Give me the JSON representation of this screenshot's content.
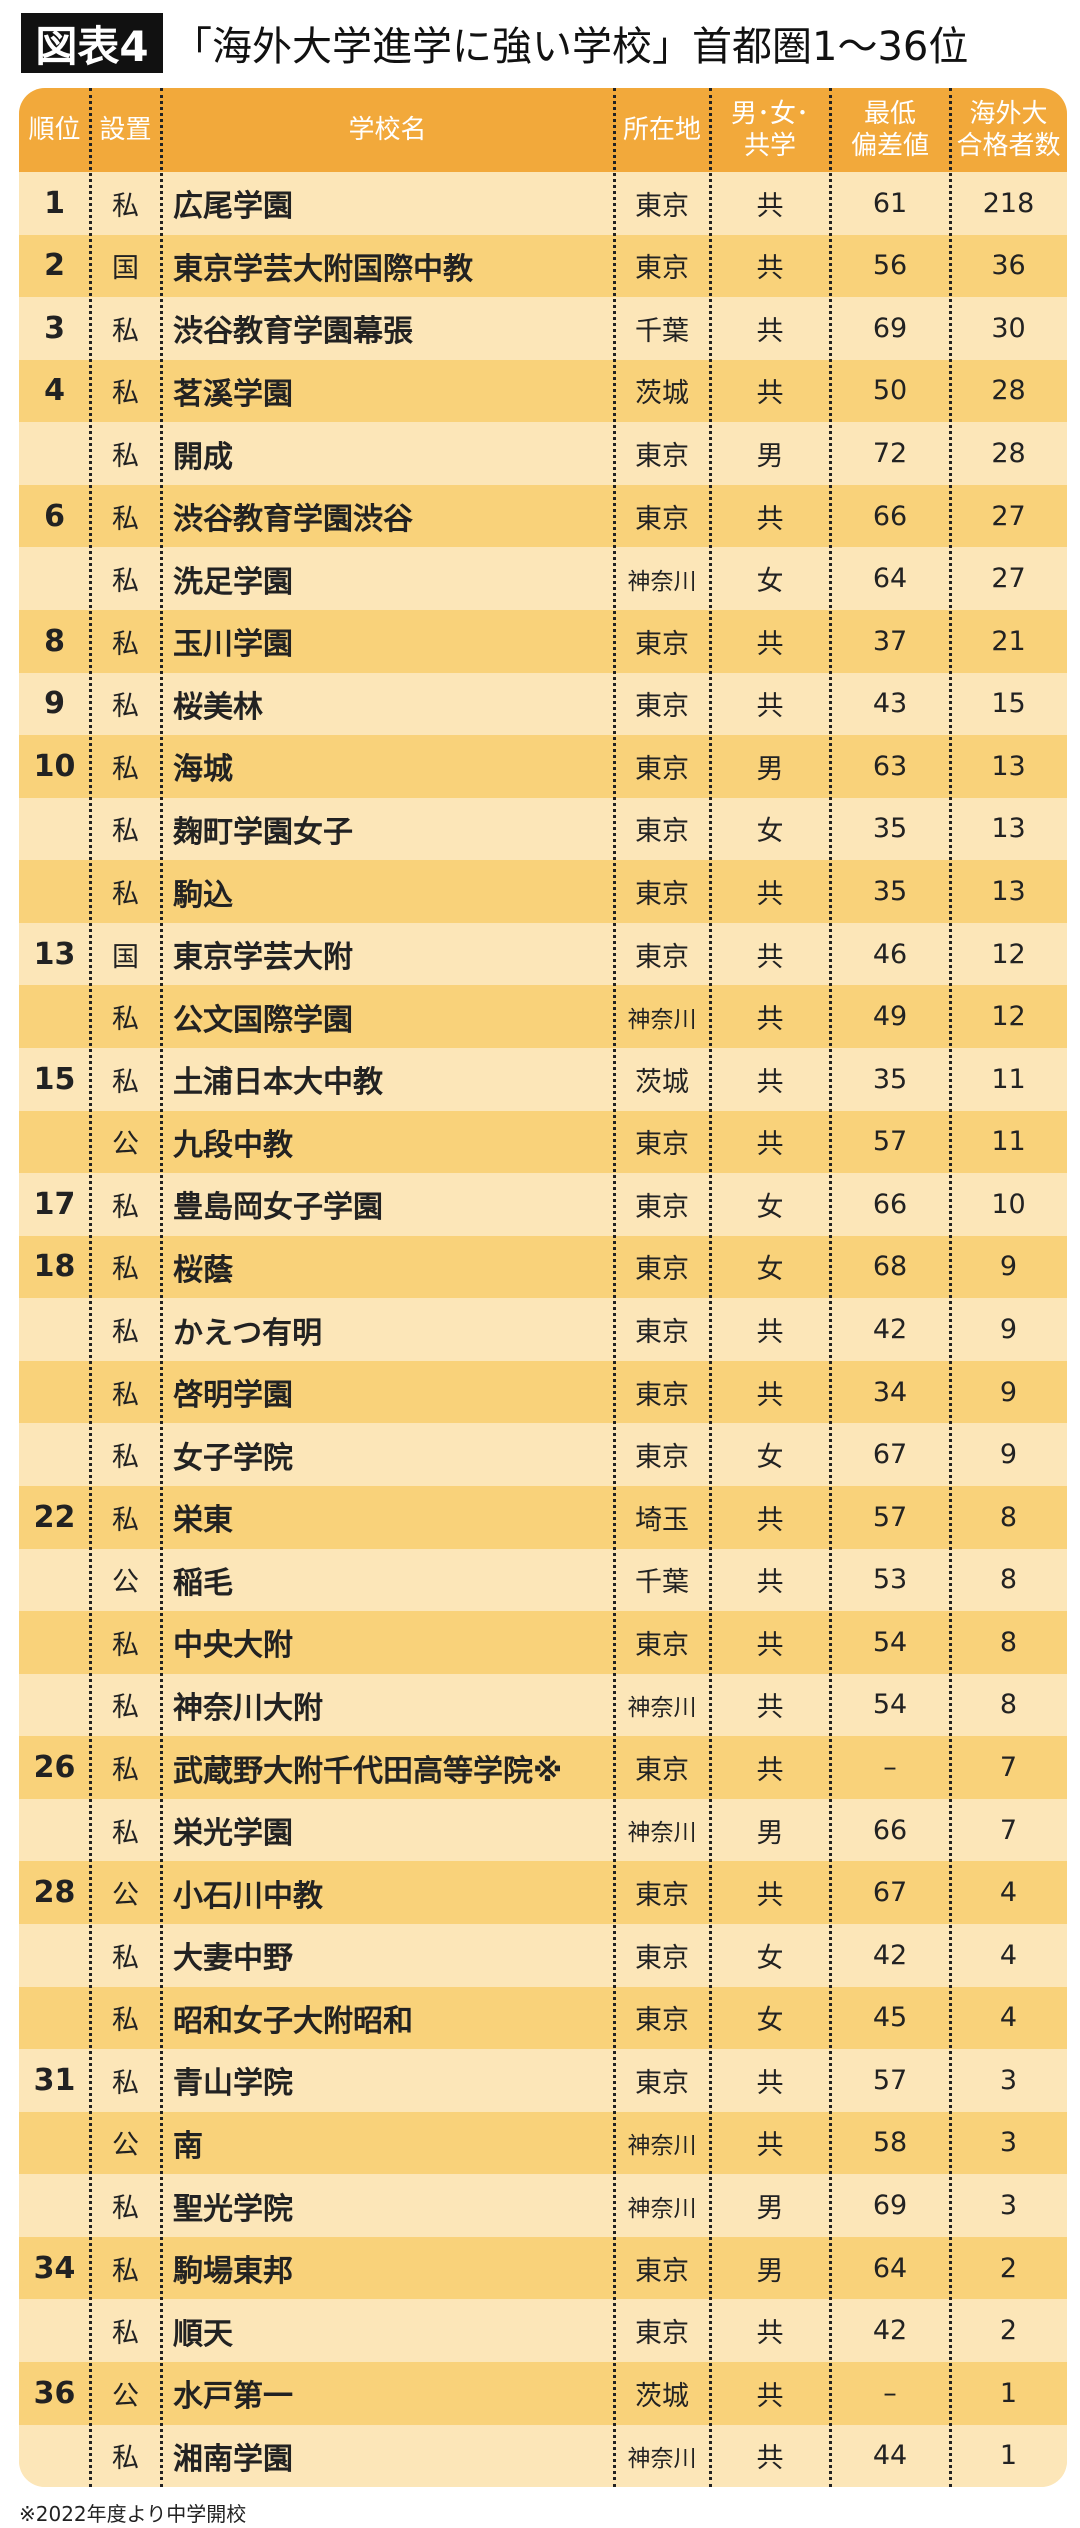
{
  "title": {
    "badge": "図表4",
    "text": "「海外大学進学に強い学校」首都圏1〜36位"
  },
  "headers": [
    "順位",
    "設置",
    "学校名",
    "所在地",
    "男･女･\n共学",
    "最低\n偏差値",
    "海外大\n合格者数"
  ],
  "rows": [
    [
      "1",
      "私",
      "広尾学園",
      "東京",
      "共",
      "61",
      "218"
    ],
    [
      "2",
      "国",
      "東京学芸大附国際中教",
      "東京",
      "共",
      "56",
      "36"
    ],
    [
      "3",
      "私",
      "渋谷教育学園幕張",
      "千葉",
      "共",
      "69",
      "30"
    ],
    [
      "4",
      "私",
      "茗溪学園",
      "茨城",
      "共",
      "50",
      "28"
    ],
    [
      "",
      "私",
      "開成",
      "東京",
      "男",
      "72",
      "28"
    ],
    [
      "6",
      "私",
      "渋谷教育学園渋谷",
      "東京",
      "共",
      "66",
      "27"
    ],
    [
      "",
      "私",
      "洗足学園",
      "神奈川",
      "女",
      "64",
      "27"
    ],
    [
      "8",
      "私",
      "玉川学園",
      "東京",
      "共",
      "37",
      "21"
    ],
    [
      "9",
      "私",
      "桜美林",
      "東京",
      "共",
      "43",
      "15"
    ],
    [
      "10",
      "私",
      "海城",
      "東京",
      "男",
      "63",
      "13"
    ],
    [
      "",
      "私",
      "麹町学園女子",
      "東京",
      "女",
      "35",
      "13"
    ],
    [
      "",
      "私",
      "駒込",
      "東京",
      "共",
      "35",
      "13"
    ],
    [
      "13",
      "国",
      "東京学芸大附",
      "東京",
      "共",
      "46",
      "12"
    ],
    [
      "",
      "私",
      "公文国際学園",
      "神奈川",
      "共",
      "49",
      "12"
    ],
    [
      "15",
      "私",
      "土浦日本大中教",
      "茨城",
      "共",
      "35",
      "11"
    ],
    [
      "",
      "公",
      "九段中教",
      "東京",
      "共",
      "57",
      "11"
    ],
    [
      "17",
      "私",
      "豊島岡女子学園",
      "東京",
      "女",
      "66",
      "10"
    ],
    [
      "18",
      "私",
      "桜蔭",
      "東京",
      "女",
      "68",
      "9"
    ],
    [
      "",
      "私",
      "かえつ有明",
      "東京",
      "共",
      "42",
      "9"
    ],
    [
      "",
      "私",
      "啓明学園",
      "東京",
      "共",
      "34",
      "9"
    ],
    [
      "",
      "私",
      "女子学院",
      "東京",
      "女",
      "67",
      "9"
    ],
    [
      "22",
      "私",
      "栄東",
      "埼玉",
      "共",
      "57",
      "8"
    ],
    [
      "",
      "公",
      "稲毛",
      "千葉",
      "共",
      "53",
      "8"
    ],
    [
      "",
      "私",
      "中央大附",
      "東京",
      "共",
      "54",
      "8"
    ],
    [
      "",
      "私",
      "神奈川大附",
      "神奈川",
      "共",
      "54",
      "8"
    ],
    [
      "26",
      "私",
      "武蔵野大附千代田高等学院※",
      "東京",
      "共",
      "–",
      "7"
    ],
    [
      "",
      "私",
      "栄光学園",
      "神奈川",
      "男",
      "66",
      "7"
    ],
    [
      "28",
      "公",
      "小石川中教",
      "東京",
      "共",
      "67",
      "4"
    ],
    [
      "",
      "私",
      "大妻中野",
      "東京",
      "女",
      "42",
      "4"
    ],
    [
      "",
      "私",
      "昭和女子大附昭和",
      "東京",
      "女",
      "45",
      "4"
    ],
    [
      "31",
      "私",
      "青山学院",
      "東京",
      "共",
      "57",
      "3"
    ],
    [
      "",
      "公",
      "南",
      "神奈川",
      "共",
      "58",
      "3"
    ],
    [
      "",
      "私",
      "聖光学院",
      "神奈川",
      "男",
      "69",
      "3"
    ],
    [
      "34",
      "私",
      "駒場東邦",
      "東京",
      "男",
      "64",
      "2"
    ],
    [
      "",
      "私",
      "順天",
      "東京",
      "共",
      "42",
      "2"
    ],
    [
      "36",
      "公",
      "水戸第一",
      "茨城",
      "共",
      "–",
      "1"
    ],
    [
      "",
      "私",
      "湘南学園",
      "神奈川",
      "共",
      "44",
      "1"
    ]
  ],
  "footnote": "※2022年度より中学開校",
  "colors": {
    "header": "#f2a93b",
    "row_light": "#fce6b8",
    "row_dark": "#f9d27a"
  }
}
